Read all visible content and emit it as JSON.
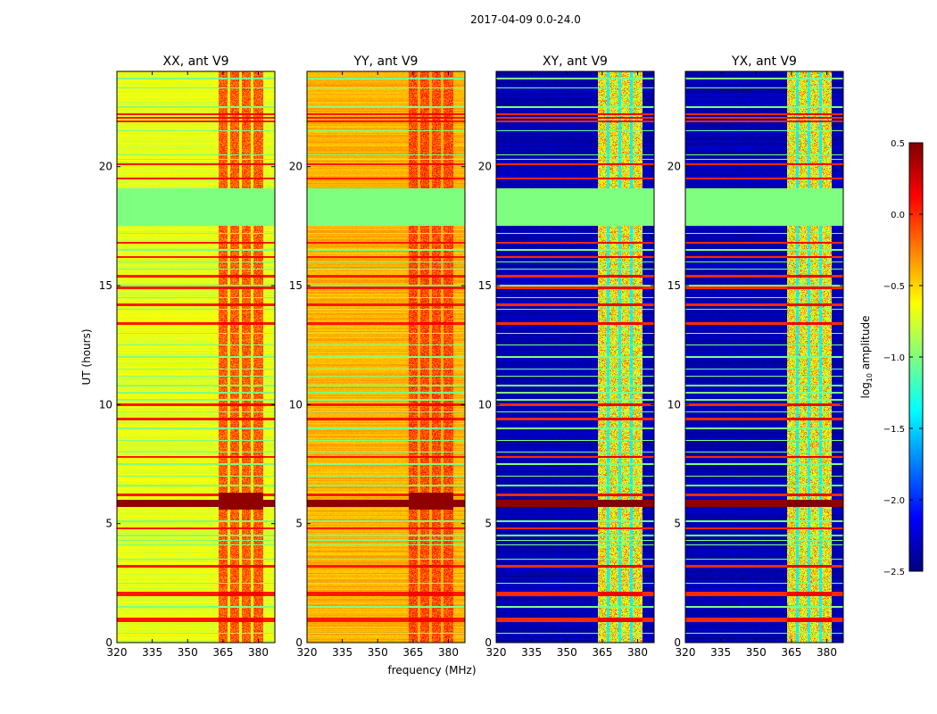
{
  "chart_data": {
    "type": "heatmap",
    "title": "2017-04-09 0.0-24.0",
    "xlabel": "frequency (MHz)",
    "ylabel": "UT (hours)",
    "xlim": [
      320,
      387
    ],
    "ylim": [
      0,
      24
    ],
    "xticks": [
      320,
      335,
      350,
      365,
      380
    ],
    "yticks": [
      0,
      5,
      10,
      15,
      20
    ],
    "colormap": "jet",
    "colorbar": {
      "label_main": "log",
      "label_sub": "10",
      "label_rest": " amplitude",
      "range": [
        -2.5,
        0.5
      ],
      "ticks": [
        0.5,
        0.0,
        -0.5,
        -1.0,
        -1.5,
        -2.0,
        -2.5
      ],
      "tick_labels": [
        "0.5",
        "0.0",
        "−0.5",
        "−1.0",
        "−1.5",
        "−2.0",
        "−2.5"
      ]
    },
    "flagged_block_hours": [
      17.5,
      19.1
    ],
    "flagged_value": -1.0,
    "signal_band_mhz": [
      363,
      382
    ],
    "band_gaps_mhz": [
      367.5,
      372.5,
      377.5
    ],
    "rfi_rows_hours": [
      0.9,
      1.0,
      2.0,
      2.1,
      3.2,
      4.8,
      5.75,
      5.85,
      5.95,
      6.2,
      7.8,
      9.4,
      10.0,
      13.4,
      14.2,
      14.9,
      15.4,
      16.2,
      16.8,
      19.5,
      20.1,
      21.9,
      22.05,
      22.2
    ],
    "flagged_rows_hours": [
      0.4,
      1.5,
      2.5,
      3.5,
      4.1,
      4.3,
      4.5,
      5.1,
      6.6,
      7.0,
      7.5,
      8.0,
      8.5,
      9.0,
      9.7,
      10.2,
      10.5,
      10.8,
      11.2,
      11.5,
      12.0,
      12.5,
      13.0,
      14.0,
      14.5,
      15.0,
      15.7,
      16.0,
      16.5,
      17.2,
      20.3,
      20.5,
      21.5,
      22.5,
      23.3,
      23.7
    ],
    "panels": [
      {
        "title": "XX, ant V9",
        "background_level": -0.7,
        "band_level": -0.15,
        "gap_level": -0.6
      },
      {
        "title": "YY, ant V9",
        "background_level": -0.4,
        "band_level": -0.1,
        "gap_level": -0.4
      },
      {
        "title": "XY, ant V9",
        "background_level": -2.35,
        "band_level": -0.6,
        "gap_level": -1.4
      },
      {
        "title": "YX, ant V9",
        "background_level": -2.35,
        "band_level": -0.6,
        "gap_level": -1.4
      }
    ]
  }
}
